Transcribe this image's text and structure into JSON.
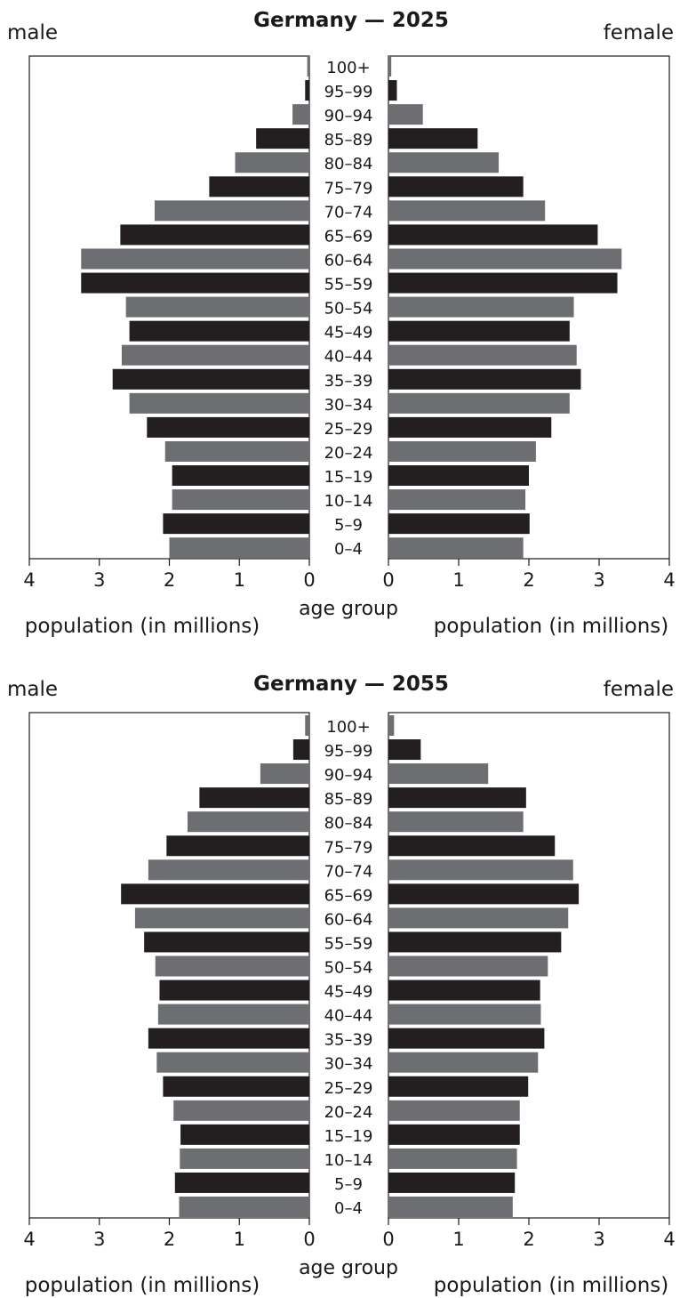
{
  "chart_data": [
    {
      "type": "bar",
      "title": "Germany — 2025",
      "left_label": "male",
      "right_label": "female",
      "center_label": "age group",
      "xlabel": "population (in millions)",
      "xlim": [
        0,
        4
      ],
      "xticks": [
        "4",
        "3",
        "2",
        "1",
        "0"
      ],
      "xticks_right": [
        "0",
        "1",
        "2",
        "3",
        "4"
      ],
      "grid": false,
      "categories": [
        "100+",
        "95–99",
        "90–94",
        "85–89",
        "80–84",
        "75–79",
        "70–74",
        "65–69",
        "60–64",
        "55–59",
        "50–54",
        "45–49",
        "40–44",
        "35–39",
        "30–34",
        "25–29",
        "20–24",
        "15–19",
        "10–14",
        "5–9",
        "0–4"
      ],
      "series": [
        {
          "name": "male",
          "values": [
            0.03,
            0.06,
            0.24,
            0.76,
            1.06,
            1.43,
            2.21,
            2.7,
            3.26,
            3.26,
            2.62,
            2.57,
            2.68,
            2.81,
            2.57,
            2.32,
            2.06,
            1.96,
            1.96,
            2.09,
            2.0
          ]
        },
        {
          "name": "female",
          "values": [
            0.04,
            0.12,
            0.49,
            1.27,
            1.57,
            1.92,
            2.23,
            2.98,
            3.32,
            3.26,
            2.64,
            2.58,
            2.68,
            2.74,
            2.58,
            2.32,
            2.1,
            2.0,
            1.95,
            2.01,
            1.92
          ]
        }
      ]
    },
    {
      "type": "bar",
      "title": "Germany — 2055",
      "left_label": "male",
      "right_label": "female",
      "center_label": "age group",
      "xlabel": "population (in millions)",
      "xlim": [
        0,
        4
      ],
      "xticks": [
        "4",
        "3",
        "2",
        "1",
        "0"
      ],
      "xticks_right": [
        "0",
        "1",
        "2",
        "3",
        "4"
      ],
      "grid": false,
      "categories": [
        "100+",
        "95–99",
        "90–94",
        "85–89",
        "80–84",
        "75–79",
        "70–74",
        "65–69",
        "60–64",
        "55–59",
        "50–54",
        "45–49",
        "40–44",
        "35–39",
        "30–34",
        "25–29",
        "20–24",
        "15–19",
        "10–14",
        "5–9",
        "0–4"
      ],
      "series": [
        {
          "name": "male",
          "values": [
            0.06,
            0.23,
            0.7,
            1.57,
            1.74,
            2.04,
            2.3,
            2.69,
            2.49,
            2.36,
            2.2,
            2.14,
            2.16,
            2.3,
            2.18,
            2.09,
            1.94,
            1.84,
            1.85,
            1.92,
            1.86
          ]
        },
        {
          "name": "female",
          "values": [
            0.08,
            0.46,
            1.42,
            1.96,
            1.92,
            2.37,
            2.63,
            2.71,
            2.56,
            2.46,
            2.27,
            2.16,
            2.17,
            2.22,
            2.13,
            1.99,
            1.87,
            1.87,
            1.83,
            1.8,
            1.77
          ]
        }
      ]
    }
  ],
  "colors": {
    "dark": "#231f20",
    "gray": "#6d6e71",
    "frame": "#1a1a1a"
  }
}
